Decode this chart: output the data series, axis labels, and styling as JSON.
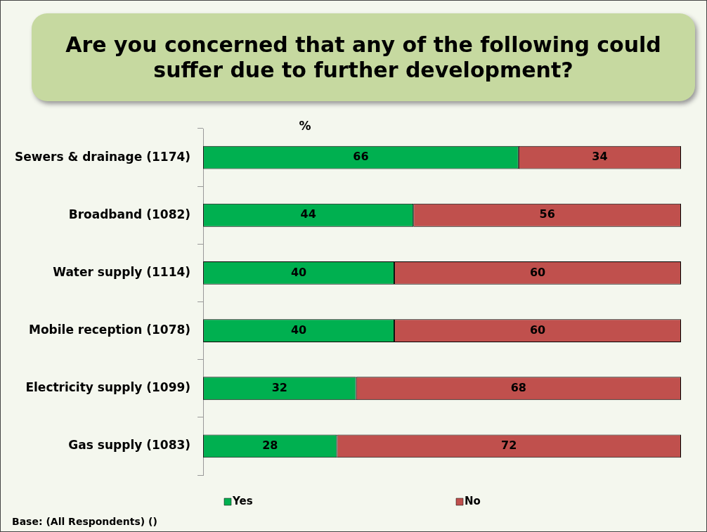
{
  "chart_data": {
    "type": "bar",
    "orientation": "horizontal",
    "stacked": true,
    "title": "Are you concerned that any of the following could suffer due to further development?",
    "xlabel": "%",
    "categories": [
      "Sewers & drainage (1174)",
      "Broadband (1082)",
      "Water supply (1114)",
      "Mobile reception (1078)",
      "Electricity supply (1099)",
      "Gas supply (1083)"
    ],
    "series": [
      {
        "name": "Yes",
        "color": "#00b050",
        "values": [
          66,
          44,
          40,
          40,
          32,
          28
        ]
      },
      {
        "name": "No",
        "color": "#c0504d",
        "values": [
          34,
          56,
          60,
          60,
          68,
          72
        ]
      }
    ],
    "xlim": [
      0,
      100
    ],
    "tick_labels": "y",
    "data_labels": true,
    "legend": "bottom",
    "grid": false,
    "annotations": [
      "Base: (All Respondents) ()"
    ]
  }
}
